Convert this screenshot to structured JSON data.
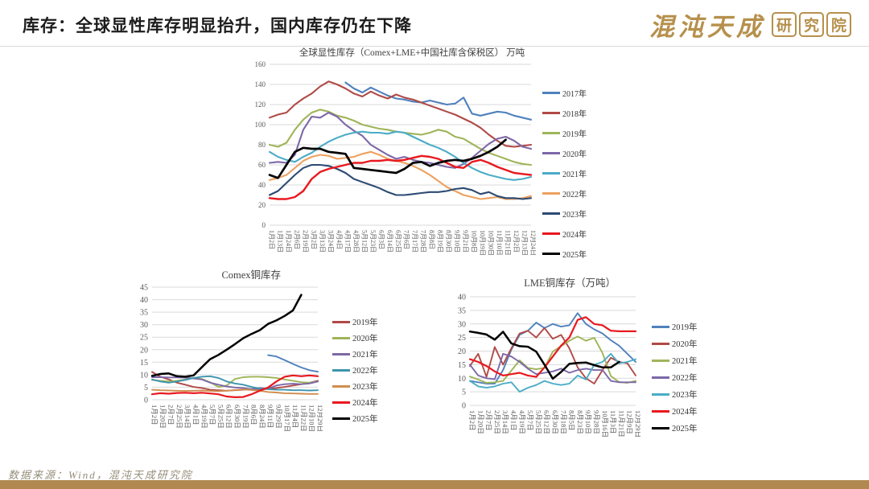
{
  "header": {
    "title": "库存：全球显性库存明显抬升，国内库存仍在下降",
    "logo": {
      "brand": "混沌天成",
      "suffix": "研究院"
    }
  },
  "footer": {
    "source": "数据来源：Wind，混沌天成研究院"
  },
  "chart_data": [
    {
      "type": "line",
      "title": "全球显性库存（Comex+LME+中国社库含保税区） 万吨",
      "ylim": [
        0,
        160
      ],
      "yticks": [
        0,
        20,
        40,
        60,
        80,
        100,
        120,
        140,
        160
      ],
      "grid": true,
      "legend_position": "right",
      "categories": [
        "1月2日",
        "1月13日",
        "1月24日",
        "2月6日",
        "2月19日",
        "3月2日",
        "3月13日",
        "3月24日",
        "4月4日",
        "4月17日",
        "4月28日",
        "5月12日",
        "5月23日",
        "6月3日",
        "6月14日",
        "6月25日",
        "7月6日",
        "7月17日",
        "7月28日",
        "8月8日",
        "8月19日",
        "8月30日",
        "9月10日",
        "9月21日",
        "10月8日",
        "10月19日",
        "10月30日",
        "11月10日",
        "11月21日",
        "12月2日",
        "12月13日",
        "12月24日"
      ],
      "series": [
        {
          "name": "2017年",
          "color": "#4f81bd",
          "values": [
            null,
            null,
            null,
            null,
            null,
            null,
            null,
            null,
            null,
            142,
            136,
            132,
            137,
            133,
            129,
            126,
            125,
            123,
            122,
            124,
            122,
            120,
            121,
            127,
            111,
            109,
            111,
            113,
            112,
            109,
            107,
            105
          ]
        },
        {
          "name": "2018年",
          "color": "#b04a47",
          "values": [
            107,
            110,
            112,
            120,
            126,
            131,
            138,
            143,
            140,
            136,
            131,
            128,
            133,
            129,
            126,
            130,
            127,
            125,
            122,
            119,
            116,
            113,
            110,
            106,
            102,
            97,
            90,
            84,
            79,
            78,
            79,
            80
          ]
        },
        {
          "name": "2019年",
          "color": "#9fb559",
          "values": [
            80,
            78,
            82,
            95,
            105,
            112,
            115,
            113,
            109,
            107,
            104,
            100,
            98,
            96,
            95,
            93,
            92,
            91,
            90,
            92,
            95,
            93,
            88,
            86,
            81,
            76,
            72,
            69,
            66,
            63,
            61,
            60
          ]
        },
        {
          "name": "2020年",
          "color": "#7d68a8",
          "values": [
            62,
            63,
            62,
            70,
            95,
            108,
            107,
            112,
            108,
            100,
            94,
            89,
            80,
            75,
            70,
            66,
            68,
            65,
            63,
            62,
            60,
            58,
            57,
            61,
            67,
            74,
            81,
            86,
            88,
            84,
            78,
            76
          ]
        },
        {
          "name": "2021年",
          "color": "#4bacc6",
          "values": [
            73,
            68,
            65,
            63,
            68,
            72,
            78,
            83,
            87,
            90,
            92,
            93,
            92,
            92,
            91,
            93,
            92,
            88,
            84,
            80,
            77,
            73,
            68,
            62,
            57,
            53,
            50,
            48,
            46,
            45,
            46,
            48
          ]
        },
        {
          "name": "2022年",
          "color": "#eda15f",
          "values": [
            45,
            47,
            50,
            57,
            64,
            68,
            70,
            69,
            66,
            67,
            68,
            71,
            73,
            70,
            66,
            64,
            62,
            59,
            55,
            50,
            44,
            38,
            34,
            30,
            28,
            26,
            27,
            28,
            26,
            26,
            27,
            29
          ]
        },
        {
          "name": "2023年",
          "color": "#2d4a73",
          "values": [
            30,
            34,
            42,
            50,
            57,
            60,
            60,
            59,
            56,
            52,
            46,
            43,
            40,
            37,
            33,
            30,
            30,
            31,
            32,
            33,
            33,
            34,
            36,
            37,
            35,
            31,
            33,
            29,
            27,
            27,
            26,
            27
          ]
        },
        {
          "name": "2024年",
          "color": "#e8191f",
          "values": [
            27,
            26,
            26,
            28,
            34,
            46,
            53,
            56,
            58,
            60,
            62,
            62,
            64,
            64,
            65,
            64,
            65,
            67,
            69,
            68,
            66,
            62,
            58,
            57,
            63,
            65,
            62,
            58,
            55,
            52,
            51,
            50
          ]
        },
        {
          "name": "2025年",
          "color": "#000000",
          "values": [
            50,
            47,
            60,
            73,
            77,
            76,
            76,
            73,
            72,
            71,
            57,
            56,
            55,
            54,
            53,
            52,
            56,
            62,
            63,
            59,
            62,
            64,
            65,
            64,
            66,
            69,
            73,
            78,
            85,
            null,
            null,
            null
          ]
        }
      ]
    },
    {
      "type": "line",
      "title": "Comex铜库存",
      "ylim": [
        0,
        45
      ],
      "yticks": [
        0,
        5,
        10,
        15,
        20,
        25,
        30,
        35,
        40,
        45
      ],
      "grid": true,
      "legend_position": "right",
      "categories": [
        "1月2日",
        "1月20日",
        "2月7日",
        "2月25日",
        "3月14日",
        "4月1日",
        "4月19日",
        "5月7日",
        "5月25日",
        "6月12日",
        "6月30日",
        "7月19日",
        "8月6日",
        "8月24日",
        "9月11日",
        "9月29日",
        "10月17日",
        "11月4日",
        "11月22日",
        "12月10日",
        "12月29日"
      ],
      "series": [
        {
          "name": "",
          "color": "#4f81bd",
          "values": [
            null,
            null,
            null,
            null,
            null,
            null,
            null,
            null,
            null,
            null,
            null,
            null,
            null,
            null,
            17.8,
            17.3,
            15.8,
            14.3,
            12.9,
            11.8,
            11.2
          ]
        },
        {
          "name": "2019年",
          "color": "#b04a47",
          "values": [
            11.1,
            9.2,
            8.1,
            6.8,
            6,
            5.1,
            4.7,
            4,
            3.8,
            3.6,
            3.8,
            4,
            4.3,
            4.2,
            4.3,
            4.7,
            5.1,
            5.7,
            6.2,
            6.8,
            7.6
          ]
        },
        {
          "name": "2020年",
          "color": "#9fb559",
          "values": [
            7.9,
            7.6,
            7.3,
            7.6,
            8.1,
            8.7,
            8.3,
            7,
            5.1,
            5.7,
            8.3,
            9,
            9.2,
            9.2,
            9,
            8.7,
            8.1,
            7.6,
            7,
            6.8,
            7.3
          ]
        },
        {
          "name": "2021年",
          "color": "#7d68a8",
          "values": [
            9,
            9,
            8.9,
            8.9,
            8.8,
            8.5,
            8.1,
            6.8,
            6,
            5.3,
            4.9,
            4.7,
            4.2,
            4.7,
            4.4,
            5.7,
            6.2,
            6.4,
            6.2,
            6.5,
            7.3
          ]
        },
        {
          "name": "2022年",
          "color": "#3e95ad",
          "values": [
            8.1,
            7.3,
            6.8,
            7.3,
            7.9,
            8.7,
            9.2,
            9.4,
            8.7,
            7.3,
            6.5,
            6,
            5.1,
            4.4,
            4.2,
            4,
            4,
            3.8,
            3.8,
            3.7,
            3.8
          ]
        },
        {
          "name": "2023年",
          "color": "#d08e4e",
          "values": [
            4,
            3.8,
            3.7,
            3.6,
            3.5,
            3.6,
            3.7,
            3.5,
            3.4,
            3.6,
            3.9,
            4.1,
            3.9,
            3.6,
            3.1,
            2.9,
            2.6,
            2.5,
            2.4,
            2.3,
            2.3
          ]
        },
        {
          "name": "2024年",
          "color": "#e8191f",
          "values": [
            2.2,
            2.6,
            2.4,
            2.7,
            2.8,
            2.6,
            2.8,
            2.5,
            2.2,
            1.3,
            1,
            1.1,
            2.2,
            3.6,
            4.9,
            7.3,
            9.2,
            9.7,
            9.4,
            9.7,
            9.4
          ]
        },
        {
          "name": "2025年",
          "color": "#000000",
          "values": [
            9.5,
            10.3,
            10.5,
            9.4,
            9.2,
            9.7,
            13,
            16.2,
            17.9,
            20,
            22.2,
            24.6,
            26.3,
            27.8,
            30.3,
            31.7,
            33.5,
            35.7,
            41.9,
            null,
            null
          ]
        }
      ]
    },
    {
      "type": "line",
      "title": "LME铜库存（万吨）",
      "ylim": [
        0,
        40
      ],
      "yticks": [
        0,
        5,
        10,
        15,
        20,
        25,
        30,
        35,
        40
      ],
      "grid": true,
      "legend_position": "right",
      "categories": [
        "1月2日",
        "1月20日",
        "2月7日",
        "2月25日",
        "3月14日",
        "4月1日",
        "4月19日",
        "5月7日",
        "5月25日",
        "6月12日",
        "6月30日",
        "7月18日",
        "8月5日",
        "8月23日",
        "9月10日",
        "9月28日",
        "10月16日",
        "11月3日",
        "11月21日",
        "12月9日",
        "12月29日"
      ],
      "series": [
        {
          "name": "2019年",
          "color": "#4f81bd",
          "values": [
            9,
            8.5,
            8,
            8,
            13,
            20.5,
            26,
            27.5,
            30.5,
            28.5,
            30,
            29,
            29.5,
            34,
            30,
            28,
            26.5,
            24,
            22,
            19,
            16
          ]
        },
        {
          "name": "2020年",
          "color": "#b04a47",
          "values": [
            14.5,
            19,
            10.5,
            21.5,
            15,
            21,
            26.5,
            27.5,
            25,
            28.5,
            24.5,
            26,
            21,
            14,
            10,
            8,
            13,
            17.5,
            16,
            15.5,
            11
          ]
        },
        {
          "name": "2021年",
          "color": "#9fb559",
          "values": [
            10.6,
            9.5,
            8.3,
            8.5,
            9,
            12.8,
            16.6,
            13.8,
            13.3,
            13.8,
            19.8,
            21.8,
            23.8,
            25.4,
            23.8,
            24.9,
            19.3,
            10.8,
            8.6,
            8.3,
            9
          ]
        },
        {
          "name": "2022年",
          "color": "#7d68a8",
          "values": [
            15,
            11,
            10,
            9.6,
            19,
            18,
            16,
            13.5,
            11.5,
            12,
            12.5,
            13.5,
            12,
            13,
            13.5,
            13,
            13,
            9,
            8.5,
            8.5,
            8.5
          ]
        },
        {
          "name": "2023年",
          "color": "#4bacc6",
          "values": [
            9,
            7,
            6.5,
            7,
            8,
            8.5,
            5,
            6.5,
            7.5,
            9,
            8,
            7.5,
            8,
            11,
            9.5,
            15,
            16,
            19,
            15.5,
            16,
            17
          ]
        },
        {
          "name": "2024年",
          "color": "#e8191f",
          "values": [
            17,
            16,
            14.5,
            12.5,
            11,
            11.5,
            12,
            11,
            10.5,
            14,
            18,
            22,
            25,
            31.5,
            32.5,
            30,
            29.5,
            27.5,
            27.3,
            27.3,
            27.3
          ]
        },
        {
          "name": "2025年",
          "color": "#000000",
          "values": [
            27.2,
            26.7,
            26.1,
            24.2,
            27.1,
            22.8,
            21.8,
            21.6,
            19.8,
            15,
            9.8,
            12.3,
            15.3,
            15.6,
            15.8,
            14.8,
            14,
            14,
            16,
            null,
            null
          ]
        }
      ]
    }
  ]
}
